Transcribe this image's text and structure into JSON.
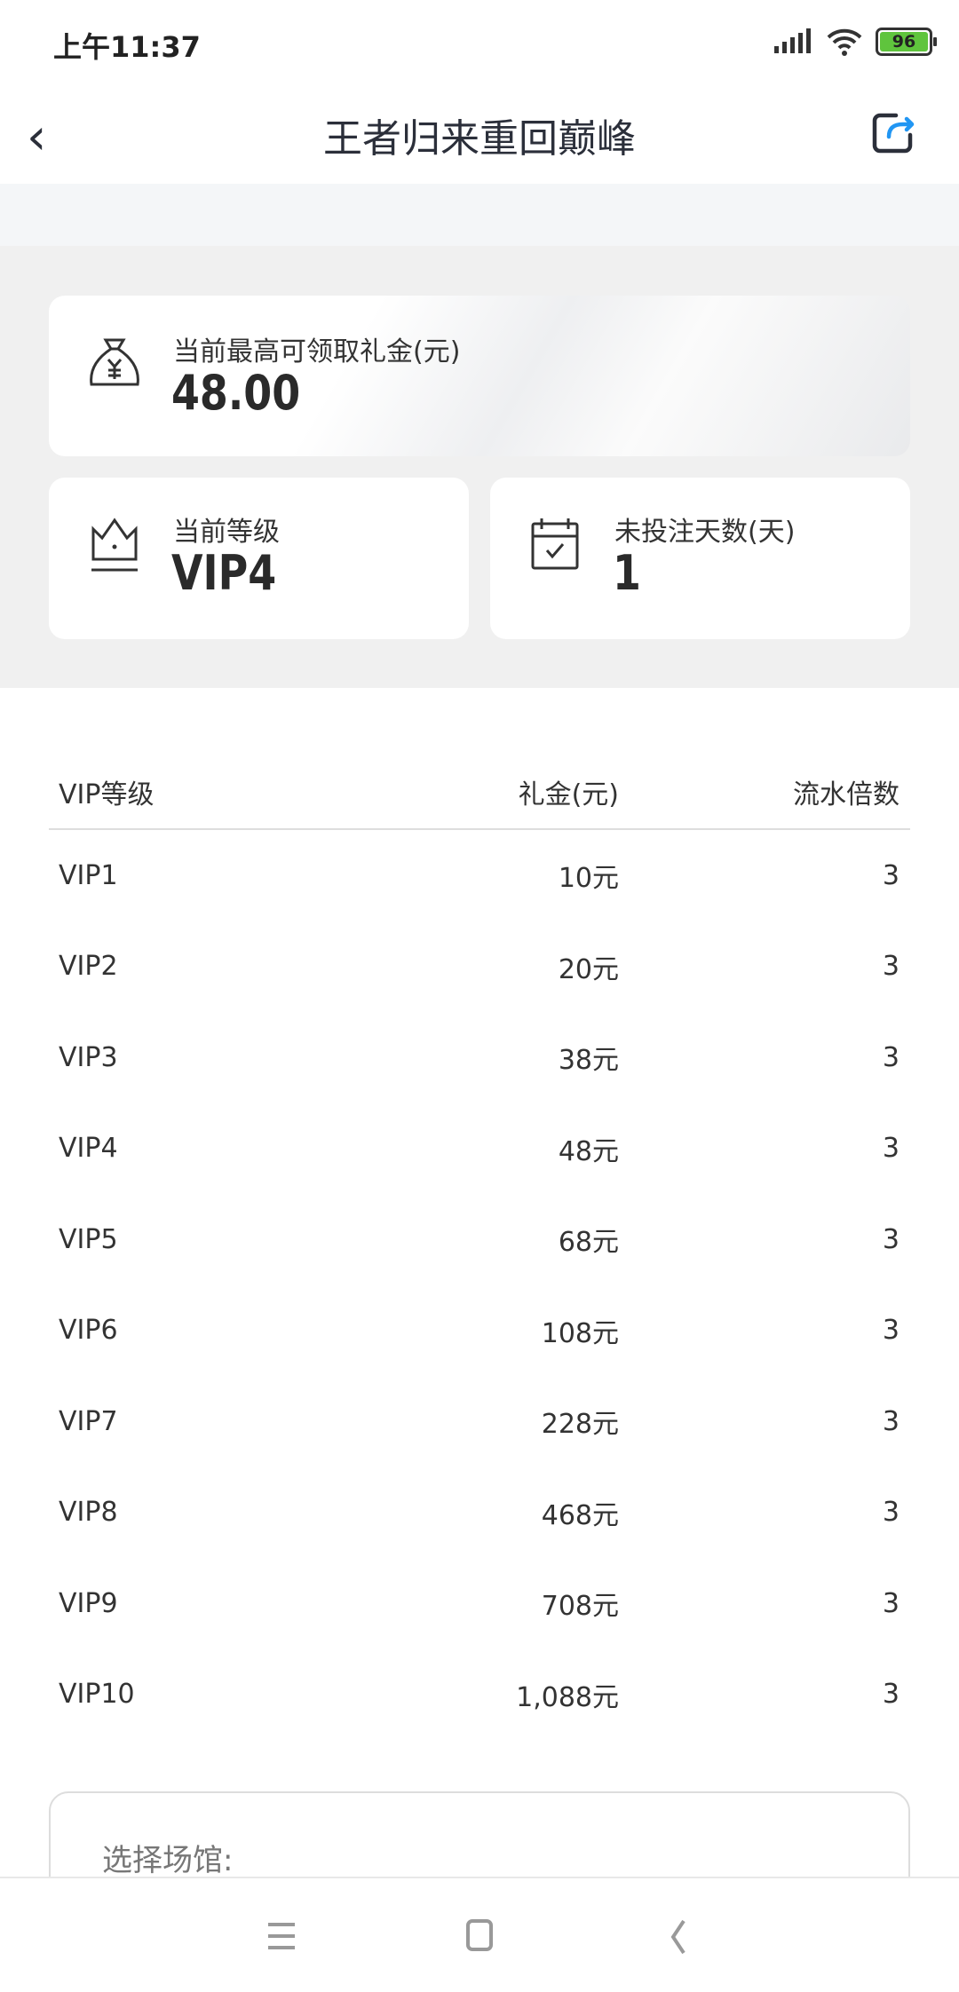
{
  "status_bar": {
    "time": "上午11:37",
    "battery": "96"
  },
  "header": {
    "title": "王者归来重回巅峰"
  },
  "cards": {
    "bonus": {
      "label": "当前最高可领取礼金(元)",
      "value": "48.00"
    },
    "level": {
      "label": "当前等级",
      "value": "VIP4"
    },
    "days": {
      "label": "未投注天数(天)",
      "value": "1"
    }
  },
  "table": {
    "headers": [
      "VIP等级",
      "礼金(元)",
      "流水倍数"
    ],
    "rows": [
      [
        "VIP1",
        "10元",
        "3"
      ],
      [
        "VIP2",
        "20元",
        "3"
      ],
      [
        "VIP3",
        "38元",
        "3"
      ],
      [
        "VIP4",
        "48元",
        "3"
      ],
      [
        "VIP5",
        "68元",
        "3"
      ],
      [
        "VIP6",
        "108元",
        "3"
      ],
      [
        "VIP7",
        "228元",
        "3"
      ],
      [
        "VIP8",
        "468元",
        "3"
      ],
      [
        "VIP9",
        "708元",
        "3"
      ],
      [
        "VIP10",
        "1,088元",
        "3"
      ]
    ]
  },
  "venue": {
    "label": "选择场馆:"
  },
  "colors": {
    "battery": "#5fc43d",
    "share_accent": "#2196f3",
    "text": "#333333"
  }
}
